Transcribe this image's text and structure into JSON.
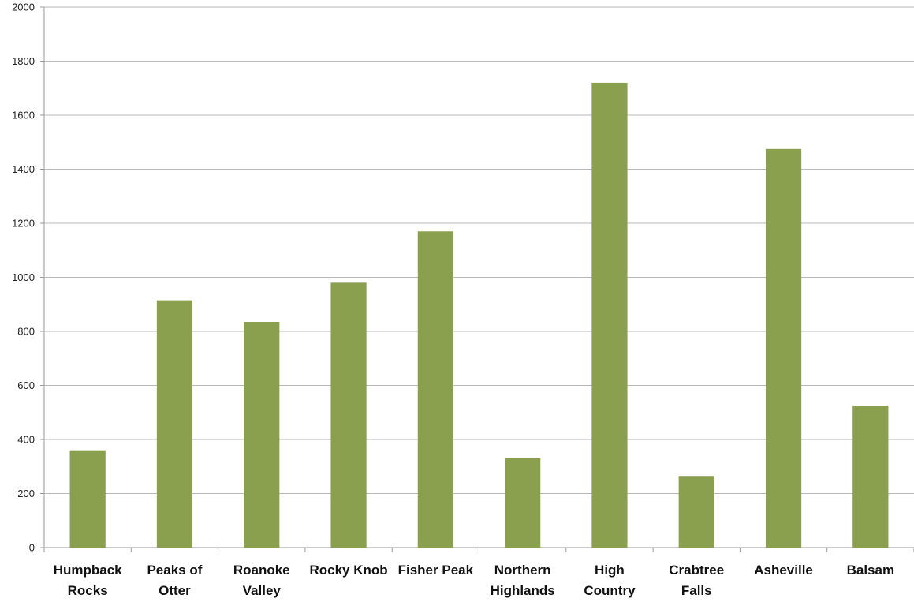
{
  "chart_data": {
    "type": "bar",
    "categories": [
      [
        "Humpback",
        "Rocks"
      ],
      [
        "Peaks of",
        "Otter"
      ],
      [
        "Roanoke",
        "Valley"
      ],
      [
        "Rocky Knob"
      ],
      [
        "Fisher Peak"
      ],
      [
        "Northern",
        "Highlands"
      ],
      [
        "High",
        "Country"
      ],
      [
        "Crabtree",
        "Falls"
      ],
      [
        "Asheville"
      ],
      [
        "Balsam"
      ]
    ],
    "values": [
      360,
      915,
      835,
      980,
      1170,
      330,
      1720,
      265,
      1475,
      525
    ],
    "ylim": [
      0,
      2000
    ],
    "yticks": [
      "0",
      "200",
      "400",
      "600",
      "800",
      "1000",
      "1200",
      "1400",
      "1600",
      "1800",
      "2000"
    ],
    "title": "",
    "xlabel": "",
    "ylabel": "",
    "grid": true,
    "legend": "none",
    "bar_color": "#8aa04e"
  }
}
